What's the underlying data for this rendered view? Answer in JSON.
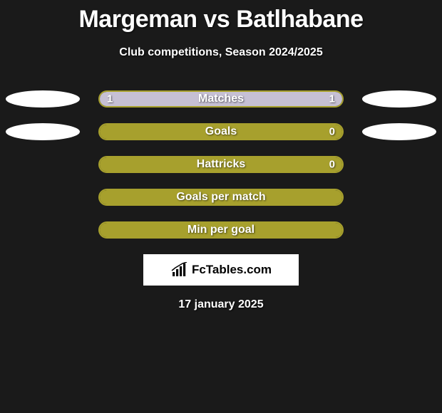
{
  "title": "Margeman vs Batlhabane",
  "subtitle": "Club competitions, Season 2024/2025",
  "date": "17 january 2025",
  "brand": "FcTables.com",
  "colors": {
    "background": "#1a1a1a",
    "text": "#ffffff",
    "ellipse": "#ffffff",
    "brand_bg": "#ffffff",
    "brand_text": "#000000"
  },
  "stats": [
    {
      "label": "Matches",
      "border_color": "#a7a02d",
      "left_value": "1",
      "right_value": "1",
      "left_fill_color": "#c6c0d4",
      "right_fill_color": "#c6c0d4",
      "left_fill_pct": 50,
      "right_fill_pct": 50,
      "show_ellipses": true
    },
    {
      "label": "Goals",
      "border_color": "#a7a02d",
      "left_value": "",
      "right_value": "0",
      "left_fill_color": "#a7a02d",
      "right_fill_color": "#a7a02d",
      "left_fill_pct": 100,
      "right_fill_pct": 0,
      "show_ellipses": true
    },
    {
      "label": "Hattricks",
      "border_color": "#a7a02d",
      "left_value": "",
      "right_value": "0",
      "left_fill_color": "#a7a02d",
      "right_fill_color": "#a7a02d",
      "left_fill_pct": 100,
      "right_fill_pct": 0,
      "show_ellipses": false
    },
    {
      "label": "Goals per match",
      "border_color": "#a7a02d",
      "left_value": "",
      "right_value": "",
      "left_fill_color": "#a7a02d",
      "right_fill_color": "#a7a02d",
      "left_fill_pct": 100,
      "right_fill_pct": 0,
      "show_ellipses": false
    },
    {
      "label": "Min per goal",
      "border_color": "#a7a02d",
      "left_value": "",
      "right_value": "",
      "left_fill_color": "#a7a02d",
      "right_fill_color": "#a7a02d",
      "left_fill_pct": 100,
      "right_fill_pct": 0,
      "show_ellipses": false
    }
  ]
}
